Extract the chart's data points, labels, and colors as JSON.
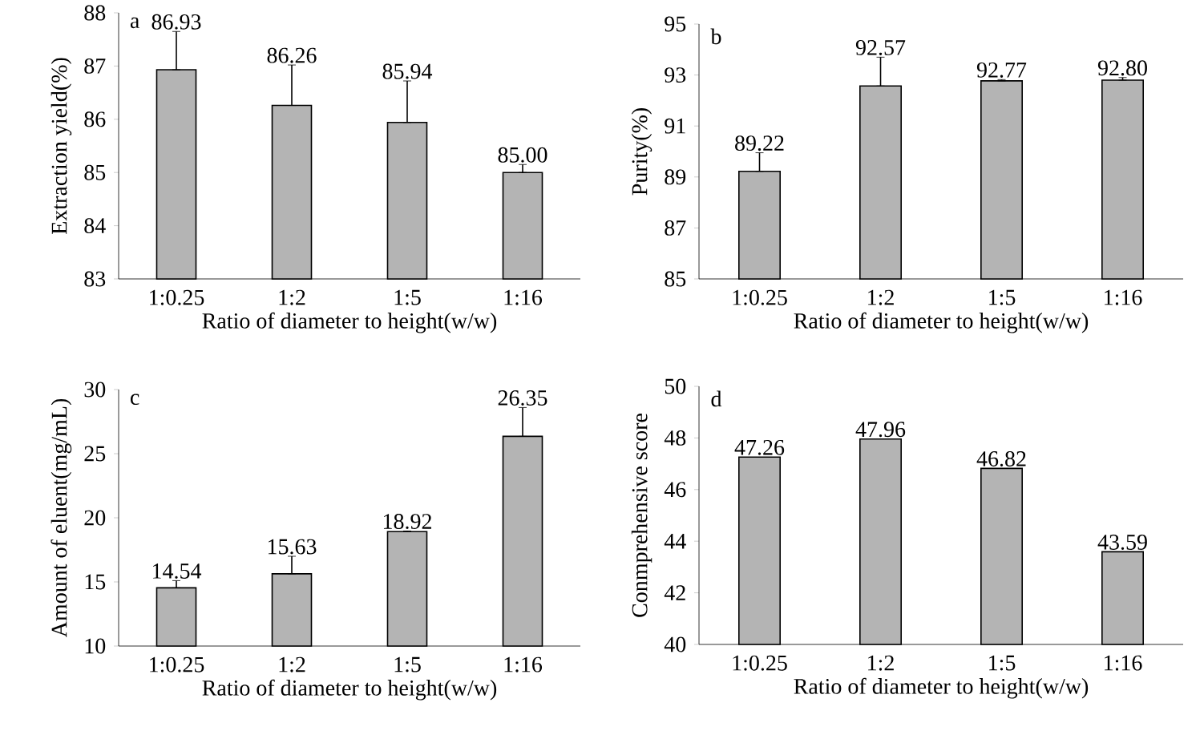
{
  "chart_data": [
    {
      "type": "bar",
      "annotations": [
        "a"
      ],
      "xlabel": "Ratio of diameter to height(w/w)",
      "ylabel": "Extraction yield(%)",
      "categories": [
        "1:0.25",
        "1:2",
        "1:5",
        "1:16"
      ],
      "values": [
        86.93,
        86.26,
        85.94,
        85.0
      ],
      "value_labels": [
        "86.93",
        "86.26",
        "85.94",
        "85.00"
      ],
      "errors": [
        [
          86.93,
          87.65
        ],
        [
          86.26,
          87.02
        ],
        [
          85.94,
          86.72
        ],
        [
          85.0,
          85.15
        ]
      ],
      "color": "#b4b4b4",
      "ylim": [
        83,
        88
      ],
      "yticks": [
        83,
        84,
        85,
        86,
        87,
        88
      ]
    },
    {
      "type": "bar",
      "annotations": [
        "b"
      ],
      "xlabel": "Ratio of diameter to height(w/w)",
      "ylabel": "Purity(%)",
      "categories": [
        "1:0.25",
        "1:2",
        "1:5",
        "1:16"
      ],
      "values": [
        89.22,
        92.57,
        92.77,
        92.8
      ],
      "value_labels": [
        "89.22",
        "92.57",
        "92.77",
        "92.80"
      ],
      "errors": [
        [
          89.22,
          89.95
        ],
        [
          92.57,
          93.7
        ],
        [
          92.77,
          92.82
        ],
        [
          92.8,
          92.9
        ]
      ],
      "color": "#b4b4b4",
      "ylim": [
        85,
        95
      ],
      "yticks": [
        85,
        87,
        89,
        91,
        93,
        95
      ]
    },
    {
      "type": "bar",
      "annotations": [
        "c"
      ],
      "xlabel": "Ratio of diameter to height(w/w)",
      "ylabel": "Amount of eluent(mg/mL)",
      "categories": [
        "1:0.25",
        "1:2",
        "1:5",
        "1:16"
      ],
      "values": [
        14.54,
        15.63,
        18.92,
        26.35
      ],
      "value_labels": [
        "14.54",
        "15.63",
        "18.92",
        "26.35"
      ],
      "errors": [
        [
          14.54,
          15.1
        ],
        [
          15.63,
          17.0
        ],
        [
          18.92,
          18.97
        ],
        [
          26.35,
          28.6
        ]
      ],
      "color": "#b4b4b4",
      "ylim": [
        10,
        30
      ],
      "yticks": [
        10,
        15,
        20,
        25,
        30
      ]
    },
    {
      "type": "bar",
      "annotations": [
        "d"
      ],
      "xlabel": "Ratio of diameter to height(w/w)",
      "ylabel": "Conmprehensive score",
      "categories": [
        "1:0.25",
        "1:2",
        "1:5",
        "1:16"
      ],
      "values": [
        47.26,
        47.96,
        46.82,
        43.59
      ],
      "value_labels": [
        "47.26",
        "47.96",
        "46.82",
        "43.59"
      ],
      "color": "#b4b4b4",
      "ylim": [
        40,
        50
      ],
      "yticks": [
        40,
        42,
        44,
        46,
        48,
        50
      ]
    }
  ]
}
